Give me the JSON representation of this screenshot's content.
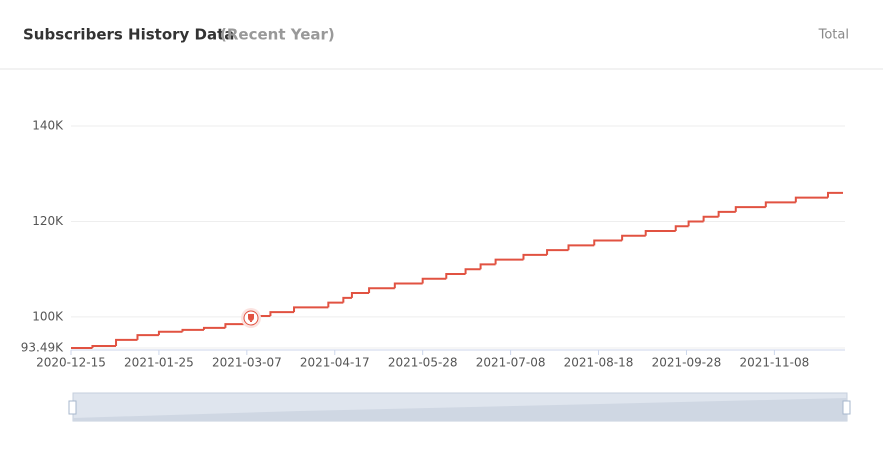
{
  "header": {
    "title": "Subscribers History Data",
    "subtitle": "(Recent Year)",
    "toggle": "Total"
  },
  "chart_data": {
    "type": "line",
    "step": true,
    "color": "#e15241",
    "x": [
      "2020-12-15",
      "2020-12-25",
      "2021-01-05",
      "2021-01-15",
      "2021-01-25",
      "2021-02-05",
      "2021-02-15",
      "2021-02-25",
      "2021-03-07",
      "2021-03-10",
      "2021-03-18",
      "2021-03-29",
      "2021-04-14",
      "2021-04-21",
      "2021-04-25",
      "2021-05-03",
      "2021-05-15",
      "2021-05-28",
      "2021-06-08",
      "2021-06-17",
      "2021-06-24",
      "2021-07-01",
      "2021-07-14",
      "2021-07-25",
      "2021-08-04",
      "2021-08-16",
      "2021-08-29",
      "2021-09-09",
      "2021-09-23",
      "2021-09-29",
      "2021-10-06",
      "2021-10-13",
      "2021-10-21",
      "2021-11-04",
      "2021-11-18",
      "2021-12-03",
      "2021-12-10"
    ],
    "series": [
      {
        "name": "Subscribers",
        "color": "#e15241",
        "values": [
          93490,
          93900,
          95200,
          96200,
          96900,
          97300,
          97700,
          98500,
          99600,
          100200,
          101000,
          102000,
          103000,
          104000,
          105000,
          106000,
          107000,
          108000,
          109000,
          110000,
          111000,
          112000,
          113000,
          114000,
          115000,
          116000,
          117000,
          118000,
          119000,
          120000,
          121000,
          122000,
          123000,
          124000,
          125000,
          126000,
          126000
        ]
      }
    ],
    "xlim": [
      "2020-12-15",
      "2021-12-10"
    ],
    "xticks": [
      "2020-12-15",
      "2021-01-25",
      "2021-03-07",
      "2021-04-17",
      "2021-05-28",
      "2021-07-08",
      "2021-08-18",
      "2021-09-28",
      "2021-11-08"
    ],
    "ylim": [
      93490,
      140000
    ],
    "yticks": [
      {
        "value": 93490,
        "label": "93.49K"
      },
      {
        "value": 100000,
        "label": "100K"
      },
      {
        "value": 120000,
        "label": "120K"
      },
      {
        "value": 140000,
        "label": "140K"
      }
    ],
    "grid": true
  }
}
